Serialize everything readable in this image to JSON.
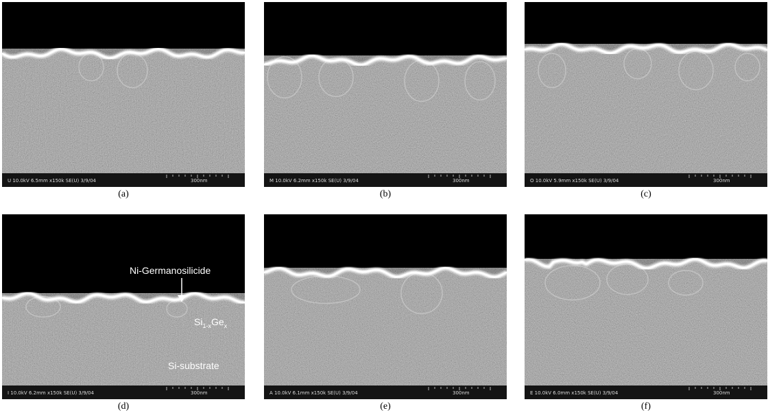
{
  "panels": [
    {
      "label": "(a)",
      "info": "U 10.0kV 6.5mm x150k SE(U) 3/9/04",
      "scale": "300nm"
    },
    {
      "label": "(b)",
      "info": "M 10.0kV 6.2mm x150k SE(U) 3/9/04",
      "scale": "300nm"
    },
    {
      "label": "(c)",
      "info": "O 10.0kV 5.9mm x150k SE(U) 3/9/04",
      "scale": "300nm"
    },
    {
      "label": "(d)",
      "info": "I 10.0kV 6.2mm x150k SE(U) 3/9/04",
      "scale": "300nm"
    },
    {
      "label": "(e)",
      "info": "A 10.0kV 6.1mm x150k SE(U) 3/9/04",
      "scale": "300nm"
    },
    {
      "label": "(f)",
      "info": "E 10.0kV 6.0mm x150k SE(U) 3/9/04",
      "scale": "300nm"
    }
  ],
  "annotations": {
    "silicide": "Ni-Germanosilicide",
    "sige": {
      "base": "Si",
      "sub": "1-x",
      "base2": "Ge",
      "sub2": "x"
    },
    "substrate": "Si-substrate"
  }
}
